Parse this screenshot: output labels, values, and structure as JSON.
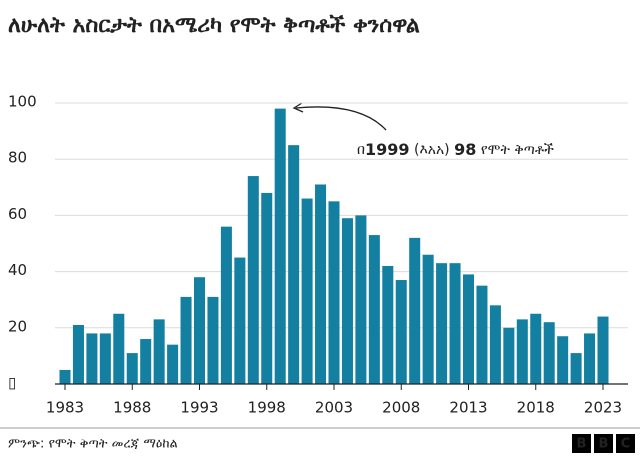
{
  "chart_data": {
    "type": "bar",
    "title": "ለሁለት አስርታት በአሜሪካ የሞት ቅጣቶች ቀንሰዋል",
    "x": [
      1983,
      1984,
      1985,
      1986,
      1987,
      1988,
      1989,
      1990,
      1991,
      1992,
      1993,
      1994,
      1995,
      1996,
      1997,
      1998,
      1999,
      2000,
      2001,
      2002,
      2003,
      2004,
      2005,
      2006,
      2007,
      2008,
      2009,
      2010,
      2011,
      2012,
      2013,
      2014,
      2015,
      2016,
      2017,
      2018,
      2019,
      2020,
      2021,
      2022,
      2023
    ],
    "values": [
      5,
      21,
      18,
      18,
      25,
      11,
      16,
      23,
      14,
      31,
      38,
      31,
      56,
      45,
      74,
      68,
      98,
      85,
      66,
      71,
      65,
      59,
      60,
      53,
      42,
      37,
      52,
      46,
      43,
      43,
      39,
      35,
      28,
      20,
      23,
      25,
      22,
      17,
      11,
      18,
      24
    ],
    "color": "#1380a1",
    "xticks": [
      1983,
      1988,
      1993,
      1998,
      2003,
      2008,
      2013,
      2018,
      2023
    ],
    "ylim": [
      0,
      100
    ],
    "yticks": [
      {
        "value": 0,
        "label": "▯"
      },
      20,
      40,
      60,
      80,
      100
    ],
    "grid": true,
    "annotation": [
      "በ",
      "1999",
      " (እአአ) ",
      "98",
      " የሞት ቅጣቶች"
    ],
    "source": "ምንጭ: የሞት ቅጣት መረጃ ማዕከል",
    "logo": [
      "B",
      "B",
      "C"
    ]
  }
}
